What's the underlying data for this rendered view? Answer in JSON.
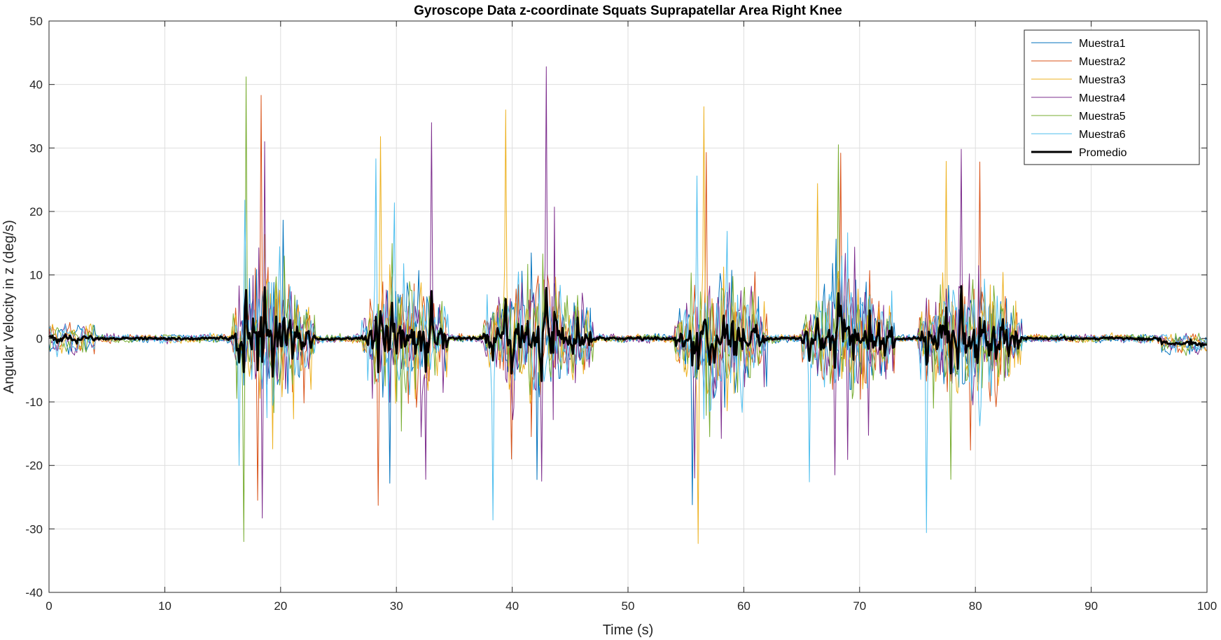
{
  "chart_data": {
    "type": "line",
    "title": "Gyroscope Data z-coordinate Squats Suprapatellar Area Right Knee",
    "xlabel": "Time (s)",
    "ylabel": "Angular Velocity in z (deg/s)",
    "xlim": [
      0,
      100
    ],
    "ylim": [
      -40,
      50
    ],
    "xticks": [
      "0",
      "10",
      "20",
      "30",
      "40",
      "50",
      "60",
      "70",
      "80",
      "90",
      "100"
    ],
    "yticks": [
      "-40",
      "-30",
      "-20",
      "-10",
      "0",
      "10",
      "20",
      "30",
      "40",
      "50"
    ],
    "grid": true,
    "legend_position": "top-right",
    "series": [
      {
        "name": "Muestra1",
        "color": "#0072BD",
        "line_width": 1
      },
      {
        "name": "Muestra2",
        "color": "#D95319",
        "line_width": 1
      },
      {
        "name": "Muestra3",
        "color": "#EDB120",
        "line_width": 1
      },
      {
        "name": "Muestra4",
        "color": "#7E2F8E",
        "line_width": 1
      },
      {
        "name": "Muestra5",
        "color": "#77AC30",
        "line_width": 1
      },
      {
        "name": "Muestra6",
        "color": "#4DBEEE",
        "line_width": 1
      },
      {
        "name": "Promedio",
        "color": "#000000",
        "line_width": 3
      }
    ],
    "bursts": [
      {
        "start": 15.8,
        "end": 23.0
      },
      {
        "start": 27.0,
        "end": 34.5
      },
      {
        "start": 37.5,
        "end": 47.0
      },
      {
        "start": 54.0,
        "end": 62.0
      },
      {
        "start": 65.0,
        "end": 73.0
      },
      {
        "start": 75.0,
        "end": 84.0
      }
    ],
    "peaks": [
      {
        "series": 4,
        "x": 17.0,
        "y": 41.2
      },
      {
        "series": 4,
        "x": 16.8,
        "y": -32.0
      },
      {
        "series": 1,
        "x": 18.3,
        "y": 38.3
      },
      {
        "series": 1,
        "x": 18.0,
        "y": -25.5
      },
      {
        "series": 3,
        "x": 18.6,
        "y": 31.0
      },
      {
        "series": 3,
        "x": 18.4,
        "y": -28.3
      },
      {
        "series": 5,
        "x": 16.9,
        "y": 21.8
      },
      {
        "series": 5,
        "x": 16.4,
        "y": -20.0
      },
      {
        "series": 2,
        "x": 28.6,
        "y": 31.8
      },
      {
        "series": 5,
        "x": 28.2,
        "y": 28.3
      },
      {
        "series": 1,
        "x": 28.4,
        "y": -26.3
      },
      {
        "series": 0,
        "x": 29.4,
        "y": -22.8
      },
      {
        "series": 3,
        "x": 33.0,
        "y": 34.0
      },
      {
        "series": 3,
        "x": 32.5,
        "y": -22.2
      },
      {
        "series": 2,
        "x": 39.4,
        "y": 36.0
      },
      {
        "series": 5,
        "x": 38.3,
        "y": -28.6
      },
      {
        "series": 3,
        "x": 42.9,
        "y": 42.8
      },
      {
        "series": 3,
        "x": 42.5,
        "y": -22.5
      },
      {
        "series": 1,
        "x": 39.9,
        "y": -19.0
      },
      {
        "series": 2,
        "x": 56.6,
        "y": 36.5
      },
      {
        "series": 2,
        "x": 56.1,
        "y": -32.3
      },
      {
        "series": 1,
        "x": 56.8,
        "y": 29.3
      },
      {
        "series": 0,
        "x": 55.6,
        "y": -26.2
      },
      {
        "series": 5,
        "x": 56.0,
        "y": 25.6
      },
      {
        "series": 3,
        "x": 55.8,
        "y": -22.0
      },
      {
        "series": 4,
        "x": 68.2,
        "y": 30.5
      },
      {
        "series": 1,
        "x": 68.4,
        "y": 29.2
      },
      {
        "series": 2,
        "x": 66.4,
        "y": 24.4
      },
      {
        "series": 3,
        "x": 67.9,
        "y": -21.5
      },
      {
        "series": 5,
        "x": 65.7,
        "y": -22.6
      },
      {
        "series": 3,
        "x": 78.8,
        "y": 29.8
      },
      {
        "series": 1,
        "x": 80.4,
        "y": 27.8
      },
      {
        "series": 2,
        "x": 77.5,
        "y": 27.9
      },
      {
        "series": 5,
        "x": 75.8,
        "y": -30.6
      },
      {
        "series": 4,
        "x": 77.9,
        "y": -22.2
      },
      {
        "series": 1,
        "x": 79.6,
        "y": -17.6
      }
    ]
  }
}
